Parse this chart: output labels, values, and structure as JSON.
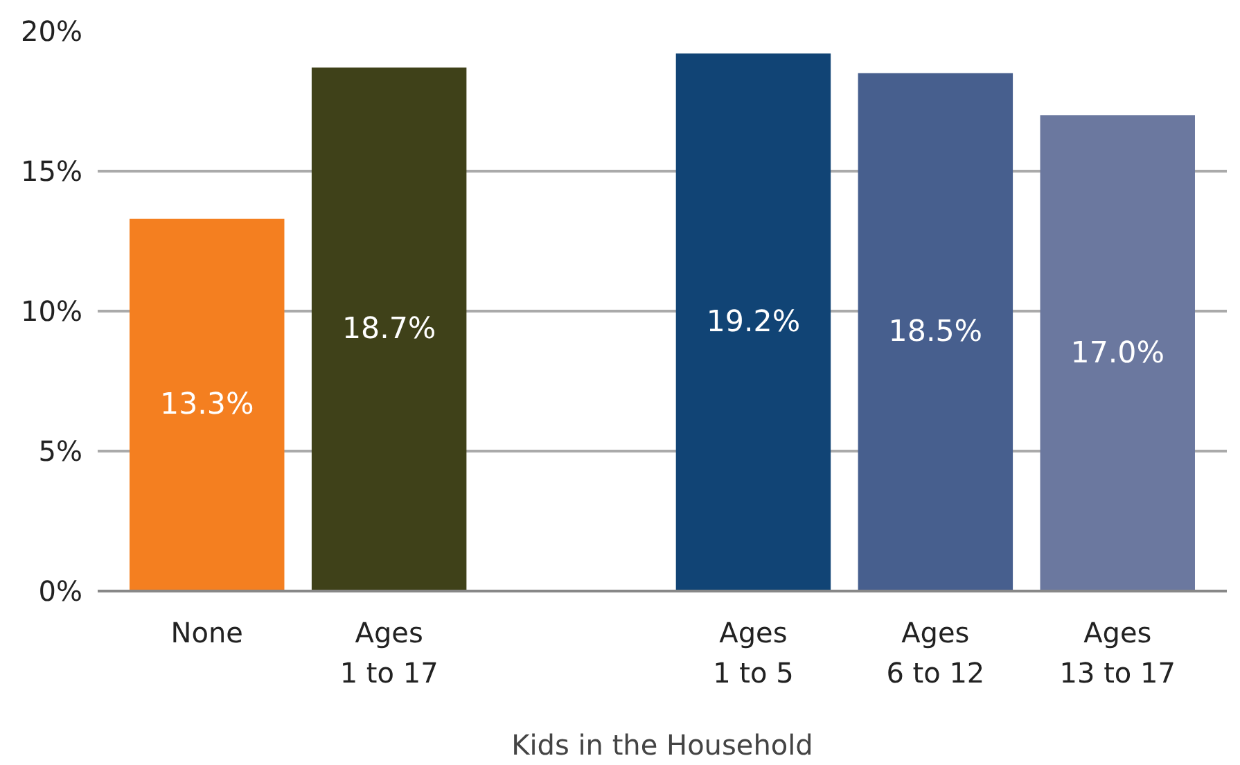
{
  "chart_data": {
    "type": "bar",
    "xlabel": "Kids in the Household",
    "categories": [
      "None",
      "Ages\n1 to 17",
      null,
      "Ages\n1 to 5",
      "Ages\n6 to 12",
      "Ages\n13 to 17"
    ],
    "values": [
      13.3,
      18.7,
      null,
      19.2,
      18.5,
      17.0
    ],
    "colors": [
      "#f47f20",
      "#3f4119",
      "#ffffff",
      "#114475",
      "#475f8e",
      "#6b789f"
    ],
    "value_labels": [
      "13.3%",
      "18.7%",
      null,
      "19.2%",
      "18.5%",
      "17.0%"
    ],
    "ylim": [
      0,
      20
    ],
    "yticks": [
      {
        "value": 0,
        "label": "0%"
      },
      {
        "value": 5,
        "label": "5%"
      },
      {
        "value": 10,
        "label": "10%"
      },
      {
        "value": 15,
        "label": "15%"
      },
      {
        "value": 20,
        "label": "20%"
      }
    ],
    "grid": "y"
  }
}
